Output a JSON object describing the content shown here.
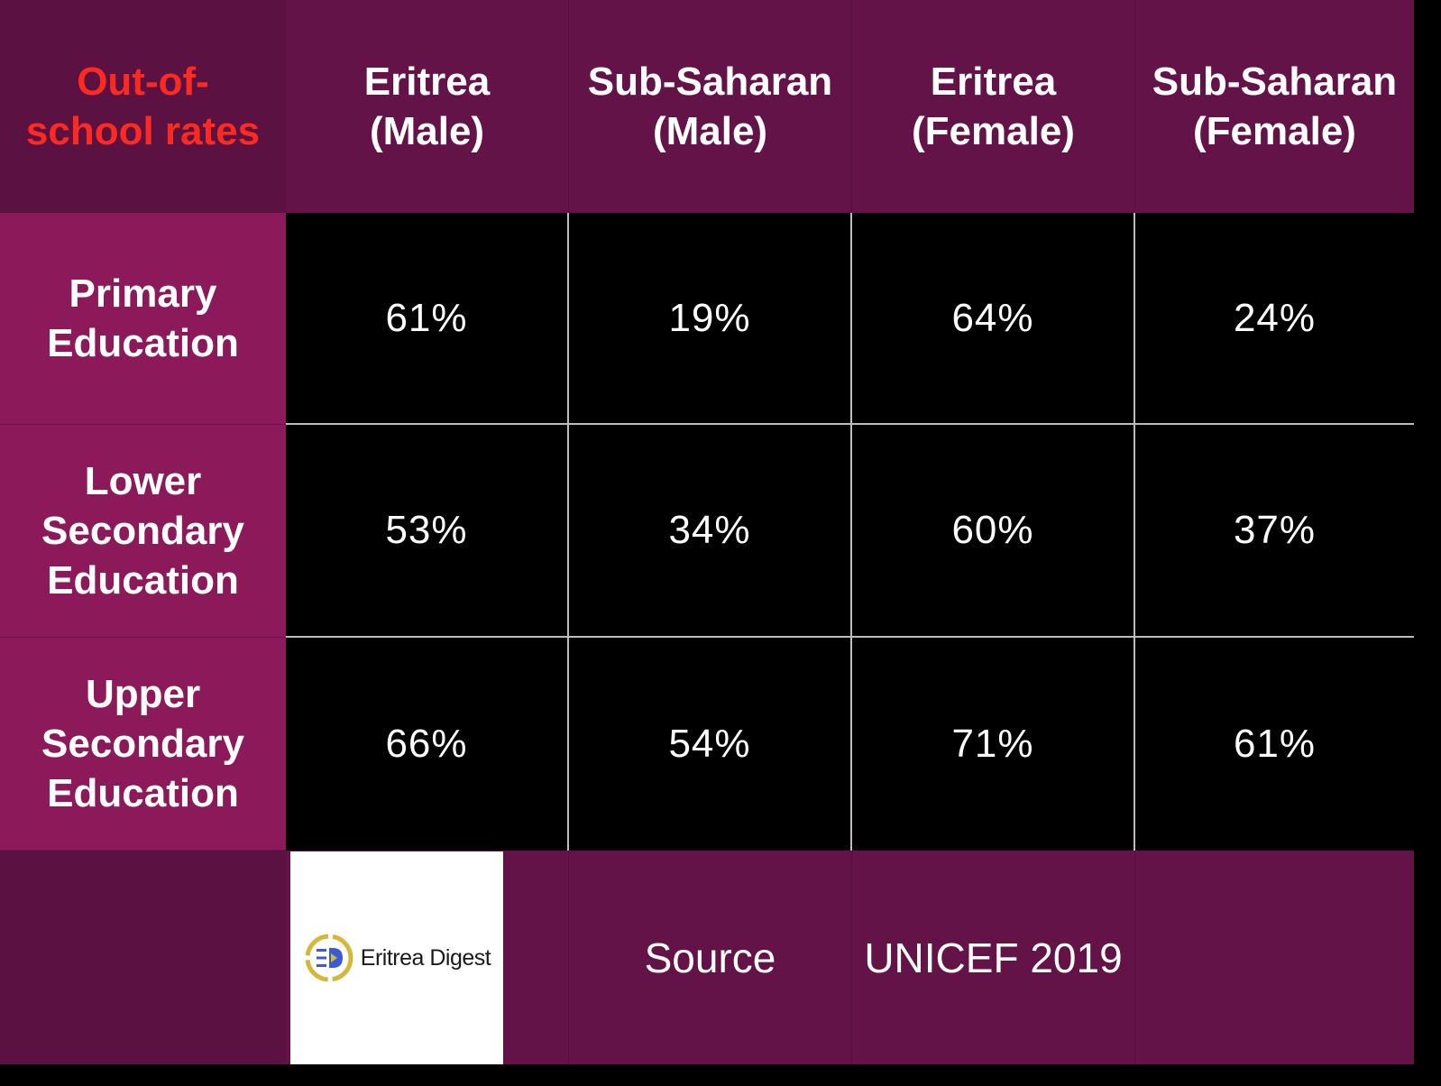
{
  "chart_data": {
    "type": "table",
    "title": "Out-of-school rates",
    "columns": [
      "Eritrea (Male)",
      "Sub-Saharan (Male)",
      "Eritrea (Female)",
      "Sub-Saharan (Female)"
    ],
    "rows": [
      {
        "label": "Primary Education",
        "values": [
          "61%",
          "19%",
          "64%",
          "24%"
        ]
      },
      {
        "label": "Lower Secondary Education",
        "values": [
          "53%",
          "34%",
          "60%",
          "37%"
        ]
      },
      {
        "label": "Upper Secondary Education",
        "values": [
          "66%",
          "54%",
          "71%",
          "61%"
        ]
      }
    ]
  },
  "header": {
    "corner": "Out-of-school rates",
    "col1": "Eritrea (Male)",
    "col2": "Sub-Saharan (Male)",
    "col3": "Eritrea (Female)",
    "col4": "Sub-Saharan (Female)"
  },
  "rows": [
    {
      "label": "Primary Education",
      "v1": "61%",
      "v2": "19%",
      "v3": "64%",
      "v4": "24%"
    },
    {
      "label": "Lower Secondary Education",
      "v1": "53%",
      "v2": "34%",
      "v3": "60%",
      "v4": "37%"
    },
    {
      "label": "Upper Secondary Education",
      "v1": "66%",
      "v2": "54%",
      "v3": "71%",
      "v4": "61%"
    }
  ],
  "footer": {
    "logo_text": "Eritrea Digest",
    "source_label": "Source",
    "source_value": "UNICEF 2019"
  },
  "colors": {
    "header_bg": "#631348",
    "row_header_bg": "#8c1a5a",
    "corner_text": "#ff2a1f",
    "cell_bg": "#000000",
    "grid_line": "#bdbdbd",
    "logo_ring": "#d4b83a",
    "logo_blue": "#3b5bd6"
  }
}
